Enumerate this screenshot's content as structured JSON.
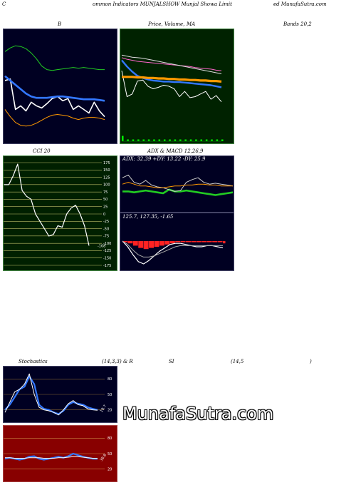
{
  "header": {
    "c": "C",
    "left": "ommon  Indicators MUNJALSHOW Munjal Showa  Limit",
    "right": "ed MunafaSutra.com"
  },
  "titles": {
    "b": "B",
    "price": "Price,",
    "volume": "Volume,",
    "ma": "MA",
    "bands": "Bands 20,2",
    "cci": "CCI 20",
    "adx": "ADX  & MACD 12,26,9",
    "stoch1": "Stochastics",
    "stoch2": "(14,3,3) & R",
    "rsi1": "SI",
    "rsi2": "(14,5",
    "rsi3": ")"
  },
  "watermark": "MunafaSutra.com",
  "colors": {
    "navy": "#000022",
    "green_bg": "#002200",
    "olive_bg": "#002000",
    "red_bg": "#880000",
    "blue": "#3377ff",
    "orange": "#ff9900",
    "white": "#ffffff"
  },
  "chart_data": [
    {
      "type": "line",
      "name": "bollinger",
      "series": [
        {
          "color": "#ffffff",
          "values": [
            80,
            82,
            40,
            45,
            38,
            50,
            45,
            42,
            48,
            55,
            58,
            52,
            55,
            40,
            45,
            40,
            35,
            50,
            38,
            30
          ]
        },
        {
          "color": "#3377ff",
          "values": [
            86,
            80,
            74,
            68,
            62,
            58,
            56,
            56,
            56,
            57,
            58,
            58,
            57,
            56,
            55,
            54,
            54,
            54,
            53,
            52
          ]
        },
        {
          "color": "#22cc22",
          "values": [
            120,
            125,
            128,
            127,
            124,
            118,
            110,
            100,
            95,
            94,
            95,
            96,
            97,
            98,
            97,
            98,
            97,
            96,
            95,
            95
          ]
        },
        {
          "color": "#ff9900",
          "values": [
            40,
            30,
            22,
            18,
            17,
            18,
            21,
            25,
            29,
            32,
            33,
            32,
            31,
            28,
            26,
            28,
            29,
            29,
            28,
            26
          ]
        }
      ]
    },
    {
      "type": "line",
      "name": "price-volume-ma",
      "series": [
        {
          "color": "#ffffff",
          "values": [
            90,
            40,
            45,
            70,
            72,
            60,
            55,
            58,
            62,
            60,
            55,
            40,
            50,
            38,
            40,
            45,
            50,
            35,
            42,
            30
          ]
        },
        {
          "color": "#ff66cc",
          "values": [
            115,
            112,
            110,
            108,
            107,
            106,
            105,
            104,
            103,
            102,
            101,
            100,
            99,
            98,
            96,
            95,
            94,
            93,
            91,
            90
          ]
        },
        {
          "color": "#dddddd",
          "values": [
            120,
            118,
            116,
            115,
            114,
            112,
            110,
            108,
            106,
            104,
            102,
            100,
            98,
            96,
            94,
            92,
            90,
            88,
            86,
            84
          ]
        },
        {
          "color": "#3377ff",
          "values": [
            110,
            98,
            88,
            80,
            76,
            73,
            71,
            70,
            69,
            69,
            68,
            68,
            67,
            66,
            65,
            64,
            63,
            62,
            60,
            58
          ]
        },
        {
          "color": "#ff9900",
          "values": [
            78,
            78,
            78,
            77,
            77,
            76,
            76,
            75,
            75,
            74,
            74,
            73,
            73,
            72,
            72,
            71,
            71,
            70,
            70,
            69
          ]
        }
      ],
      "volume": [
        3,
        1,
        1,
        1,
        1,
        1,
        1,
        1,
        1,
        1,
        1,
        1,
        1,
        1,
        1,
        1,
        1,
        1,
        1,
        1
      ]
    },
    {
      "type": "line",
      "name": "cci",
      "title": "CCI 20",
      "ylim": [
        -175,
        175
      ],
      "yticks": [
        175,
        150,
        125,
        100,
        75,
        50,
        25,
        0,
        -25,
        -50,
        -75,
        -100,
        -125,
        -150,
        -175
      ],
      "last_label": "-108",
      "values": [
        100,
        100,
        130,
        170,
        80,
        60,
        50,
        0,
        -25,
        -50,
        -75,
        -70,
        -40,
        -45,
        0,
        20,
        30,
        0,
        -40,
        -108
      ]
    },
    {
      "type": "line",
      "name": "adx",
      "label": "ADX: 32.39  +DY: 13.22  -DY: 25.9",
      "series": [
        {
          "color": "#22cc22",
          "values": [
            20,
            20,
            19,
            20,
            21,
            20,
            19,
            18,
            22,
            20,
            20,
            21,
            20,
            19,
            18,
            17,
            16,
            17,
            18,
            19
          ]
        },
        {
          "color": "#cccccc",
          "values": [
            35,
            38,
            30,
            28,
            32,
            27,
            25,
            24,
            22,
            20,
            21,
            30,
            33,
            35,
            30,
            28,
            29,
            28,
            27,
            26
          ]
        },
        {
          "color": "#ff9900",
          "values": [
            28,
            30,
            28,
            26,
            26,
            25,
            24,
            24,
            25,
            26,
            26,
            27,
            27,
            28,
            28,
            27,
            27,
            26,
            26,
            26
          ]
        }
      ]
    },
    {
      "type": "line",
      "name": "macd",
      "label": "125.7,  127.35,  -1.65",
      "series": [
        {
          "color": "#ffffff",
          "values": [
            0,
            -5,
            -12,
            -18,
            -20,
            -17,
            -13,
            -9,
            -6,
            -3,
            -2,
            -2,
            -3,
            -4,
            -5,
            -5,
            -4,
            -4,
            -5,
            -6
          ]
        },
        {
          "color": "#aaaaaa",
          "values": [
            0,
            -3,
            -8,
            -12,
            -14,
            -14,
            -13,
            -11,
            -9,
            -7,
            -5,
            -4,
            -4,
            -4,
            -4,
            -4,
            -4,
            -4,
            -4,
            -4
          ]
        }
      ],
      "histogram": [
        -1,
        -2,
        -4,
        -6,
        -7,
        -6,
        -5,
        -4,
        -3,
        -2,
        -1,
        -1,
        -1,
        -1,
        -1,
        -1,
        -1,
        -1,
        -1,
        -2
      ]
    },
    {
      "type": "line",
      "name": "stochastics",
      "ylim": [
        0,
        100
      ],
      "yticks": [
        80,
        50,
        20
      ],
      "last_label": "19.7",
      "series": [
        {
          "color": "#3377ff",
          "values": [
            20,
            30,
            45,
            60,
            65,
            85,
            70,
            30,
            22,
            20,
            15,
            12,
            18,
            30,
            35,
            32,
            30,
            25,
            22,
            20
          ]
        },
        {
          "color": "#ffffff",
          "values": [
            15,
            35,
            55,
            60,
            70,
            90,
            50,
            25,
            20,
            18,
            15,
            10,
            20,
            32,
            38,
            30,
            28,
            22,
            20,
            19
          ]
        }
      ]
    },
    {
      "type": "line",
      "name": "rsi",
      "ylim": [
        0,
        100
      ],
      "yticks": [
        80,
        50,
        20
      ],
      "last_label": "39.8",
      "series": [
        {
          "color": "#3377ff",
          "values": [
            40,
            42,
            40,
            38,
            40,
            44,
            45,
            40,
            38,
            40,
            42,
            44,
            42,
            45,
            50,
            47,
            44,
            42,
            40,
            39.8
          ]
        },
        {
          "color": "#ffffff",
          "values": [
            42,
            42,
            41,
            41,
            41,
            42,
            42,
            42,
            41,
            41,
            41,
            42,
            42,
            43,
            44,
            44,
            43,
            42,
            41,
            41
          ]
        }
      ]
    }
  ]
}
